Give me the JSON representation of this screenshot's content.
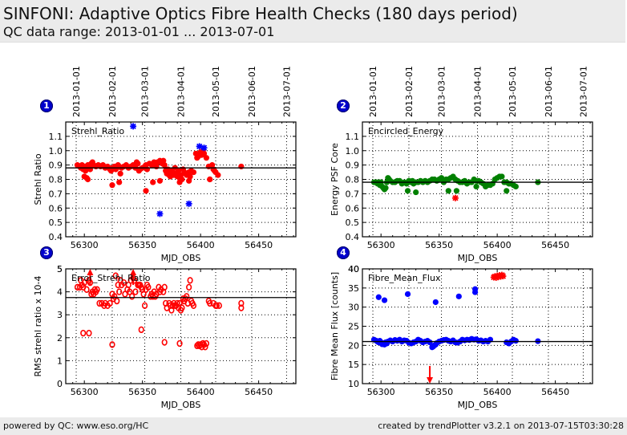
{
  "header": {
    "title": "SINFONI: Adaptive Optics Fibre Health Checks (180 days period)",
    "subtitle": "QC data range: 2013-01-01 ... 2013-07-01"
  },
  "footer": {
    "left": "powered by QC: www.eso.org/HC",
    "right": "created by trendPlotter v3.2.1 on 2013-07-15T03:30:28"
  },
  "badges": [
    "1",
    "2",
    "3",
    "4"
  ],
  "date_ticks": {
    "labels": [
      "2013-01-01",
      "2013-02-01",
      "2013-03-01",
      "2013-04-01",
      "2013-05-01",
      "2013-06-01",
      "2013-07-01"
    ],
    "mjd": [
      56293,
      56324,
      56352,
      56383,
      56413,
      56444,
      56474
    ]
  },
  "chart_data": [
    {
      "type": "scatter",
      "panel": "1",
      "title": "Strehl_Ratio",
      "xlabel": "MJD_OBS",
      "ylabel": "Strehl Ratio",
      "xlim": [
        56284,
        56482
      ],
      "ylim": [
        0.4,
        1.2
      ],
      "xticks": [
        56300,
        56350,
        56400,
        56450
      ],
      "yticks": [
        0.4,
        0.5,
        0.6,
        0.7,
        0.8,
        0.9,
        1.0,
        1.1
      ],
      "ytick_labels": [
        "0.4",
        "0.5",
        "0.6",
        "0.7",
        "0.8",
        "0.9",
        "1.0",
        "1.1"
      ],
      "reference_line": 0.88,
      "grid": "dotted-vertical-at-months, dotted-horizontal",
      "series": [
        {
          "name": "good",
          "color": "#ff0000",
          "marker": "circle",
          "x": [
            56294,
            56296,
            56297,
            56298,
            56299,
            56300,
            56301,
            56302,
            56303,
            56304,
            56305,
            56306,
            56307,
            56308,
            56310,
            56312,
            56314,
            56316,
            56318,
            56320,
            56322,
            56323,
            56324,
            56326,
            56327,
            56328,
            56329,
            56330,
            56331,
            56332,
            56334,
            56336,
            56338,
            56340,
            56342,
            56344,
            56345,
            56346,
            56347,
            56348,
            56350,
            56352,
            56353,
            56354,
            56356,
            56358,
            56359,
            56360,
            56362,
            56363,
            56365,
            56367,
            56368,
            56369,
            56370,
            56371,
            56372,
            56373,
            56374,
            56375,
            56376,
            56377,
            56378,
            56379,
            56380,
            56381,
            56382,
            56383,
            56384,
            56385,
            56386,
            56387,
            56388,
            56390,
            56391,
            56392,
            56394,
            56396,
            56397,
            56398,
            56399,
            56400,
            56401,
            56402,
            56403,
            56405,
            56407,
            56408,
            56410,
            56411,
            56412,
            56413,
            56415,
            56435,
            56300,
            56302,
            56303,
            56324,
            56330,
            56353,
            56359,
            56365,
            56382,
            56390,
            56408
          ],
          "y": [
            0.9,
            0.89,
            0.88,
            0.9,
            0.87,
            0.89,
            0.86,
            0.88,
            0.9,
            0.89,
            0.87,
            0.91,
            0.92,
            0.9,
            0.89,
            0.9,
            0.89,
            0.9,
            0.88,
            0.89,
            0.87,
            0.86,
            0.88,
            0.89,
            0.87,
            0.88,
            0.9,
            0.89,
            0.84,
            0.88,
            0.89,
            0.9,
            0.88,
            0.89,
            0.9,
            0.88,
            0.92,
            0.91,
            0.86,
            0.87,
            0.88,
            0.89,
            0.9,
            0.87,
            0.91,
            0.9,
            0.91,
            0.92,
            0.89,
            0.92,
            0.93,
            0.91,
            0.93,
            0.9,
            0.86,
            0.84,
            0.87,
            0.83,
            0.82,
            0.86,
            0.85,
            0.83,
            0.88,
            0.84,
            0.82,
            0.86,
            0.81,
            0.83,
            0.8,
            0.87,
            0.85,
            0.84,
            0.83,
            0.85,
            0.82,
            0.86,
            0.85,
            0.98,
            0.95,
            0.96,
            0.97,
            0.99,
            0.97,
            1.0,
            0.98,
            0.95,
            0.89,
            0.8,
            0.9,
            0.87,
            0.86,
            0.85,
            0.83,
            0.89,
            0.82,
            0.81,
            0.8,
            0.76,
            0.78,
            0.72,
            0.78,
            0.79,
            0.78,
            0.79,
            0.8
          ]
        },
        {
          "name": "outlier",
          "color": "#0000ff",
          "marker": "star",
          "x": [
            56342,
            56365,
            56390,
            56399,
            56403
          ],
          "y": [
            1.17,
            0.56,
            0.63,
            1.03,
            1.02
          ]
        }
      ]
    },
    {
      "type": "scatter",
      "panel": "2",
      "title": "Encircled_Energy",
      "xlabel": "MJD_OBS",
      "ylabel": "Energy PSF Core",
      "xlim": [
        56284,
        56482
      ],
      "ylim": [
        0.4,
        1.2
      ],
      "xticks": [
        56300,
        56350,
        56400,
        56450
      ],
      "yticks": [
        0.4,
        0.5,
        0.6,
        0.7,
        0.8,
        0.9,
        1.0,
        1.1
      ],
      "ytick_labels": [
        "0.4",
        "0.5",
        "0.6",
        "0.7",
        "0.8",
        "0.9",
        "1.0",
        "1.1"
      ],
      "reference_line": 0.78,
      "series": [
        {
          "name": "good",
          "color": "#008000",
          "marker": "circle",
          "x": [
            56294,
            56296,
            56297,
            56298,
            56299,
            56300,
            56301,
            56302,
            56303,
            56304,
            56305,
            56306,
            56307,
            56308,
            56310,
            56312,
            56314,
            56316,
            56318,
            56320,
            56322,
            56324,
            56326,
            56327,
            56328,
            56330,
            56332,
            56334,
            56336,
            56338,
            56340,
            56342,
            56344,
            56346,
            56348,
            56350,
            56352,
            56354,
            56356,
            56358,
            56360,
            56362,
            56364,
            56366,
            56368,
            56370,
            56372,
            56374,
            56376,
            56378,
            56380,
            56382,
            56384,
            56386,
            56388,
            56390,
            56392,
            56394,
            56396,
            56398,
            56400,
            56402,
            56404,
            56406,
            56408,
            56410,
            56412,
            56414,
            56416,
            56435,
            56323,
            56330,
            56358,
            56365,
            56382,
            56408
          ],
          "y": [
            0.78,
            0.78,
            0.77,
            0.78,
            0.76,
            0.78,
            0.75,
            0.74,
            0.73,
            0.74,
            0.78,
            0.81,
            0.8,
            0.79,
            0.78,
            0.78,
            0.79,
            0.79,
            0.77,
            0.78,
            0.77,
            0.79,
            0.78,
            0.79,
            0.77,
            0.78,
            0.78,
            0.79,
            0.78,
            0.79,
            0.78,
            0.79,
            0.8,
            0.8,
            0.79,
            0.8,
            0.81,
            0.78,
            0.8,
            0.8,
            0.81,
            0.82,
            0.8,
            0.79,
            0.78,
            0.78,
            0.79,
            0.77,
            0.78,
            0.78,
            0.8,
            0.79,
            0.79,
            0.78,
            0.77,
            0.75,
            0.76,
            0.76,
            0.77,
            0.8,
            0.81,
            0.82,
            0.82,
            0.78,
            0.78,
            0.77,
            0.77,
            0.76,
            0.75,
            0.78,
            0.72,
            0.71,
            0.72,
            0.72,
            0.75,
            0.72
          ]
        },
        {
          "name": "outlier",
          "color": "#ff0000",
          "marker": "star",
          "x": [
            56364
          ],
          "y": [
            0.67
          ]
        }
      ]
    },
    {
      "type": "scatter",
      "panel": "3",
      "title": "Error_Strehl_Ratio",
      "xlabel": "MJD_OBS",
      "ylabel": "RMS strehl ratio x 10-4",
      "xlim": [
        56284,
        56482
      ],
      "ylim": [
        0,
        5
      ],
      "xticks": [
        56300,
        56350,
        56400,
        56450
      ],
      "yticks": [
        0,
        1,
        2,
        3,
        4,
        5
      ],
      "ytick_labels": [
        "0",
        "1",
        "2",
        "3",
        "4",
        "5"
      ],
      "reference_line": 3.75,
      "series": [
        {
          "name": "values",
          "color": "#ff0000",
          "marker": "open-circle",
          "x": [
            56294,
            56296,
            56297,
            56298,
            56299,
            56300,
            56302,
            56304,
            56305,
            56306,
            56307,
            56308,
            56309,
            56310,
            56311,
            56313,
            56315,
            56317,
            56318,
            56320,
            56322,
            56324,
            56325,
            56326,
            56327,
            56328,
            56329,
            56330,
            56331,
            56332,
            56334,
            56335,
            56337,
            56338,
            56339,
            56340,
            56341,
            56342,
            56343,
            56344,
            56346,
            56347,
            56348,
            56349,
            56350,
            56351,
            56352,
            56353,
            56354,
            56355,
            56357,
            56358,
            56359,
            56360,
            56361,
            56362,
            56364,
            56365,
            56366,
            56368,
            56369,
            56370,
            56371,
            56373,
            56374,
            56375,
            56376,
            56377,
            56378,
            56379,
            56380,
            56381,
            56382,
            56383,
            56384,
            56385,
            56386,
            56387,
            56388,
            56389,
            56390,
            56391,
            56392,
            56393,
            56394,
            56407,
            56408,
            56411,
            56413,
            56414,
            56416,
            56435,
            56435,
            56299,
            56304,
            56324,
            56349,
            56369,
            56382,
            56397,
            56398,
            56399,
            56400,
            56401,
            56402,
            56403,
            56404,
            56405
          ],
          "y": [
            4.2,
            4.2,
            4.5,
            4.3,
            4.2,
            4.4,
            4.1,
            4.5,
            4.4,
            3.9,
            4.0,
            3.9,
            4.1,
            4.0,
            4.1,
            3.5,
            3.5,
            3.4,
            3.5,
            3.4,
            3.5,
            3.9,
            3.7,
            3.8,
            4.7,
            3.6,
            4.3,
            4.0,
            4.5,
            4.3,
            4.4,
            3.9,
            4.1,
            4.3,
            4.0,
            4.5,
            3.8,
            4.6,
            4.5,
            4.0,
            4.3,
            4.3,
            4.3,
            4.2,
            4.1,
            3.9,
            3.4,
            4.1,
            4.3,
            4.2,
            3.8,
            3.9,
            3.8,
            4.0,
            3.8,
            3.9,
            4.2,
            4.0,
            4.1,
            4.0,
            4.2,
            3.5,
            3.3,
            3.5,
            3.4,
            3.2,
            3.4,
            3.5,
            3.4,
            3.4,
            3.5,
            3.3,
            3.5,
            3.2,
            3.3,
            3.7,
            3.6,
            3.7,
            3.8,
            3.5,
            4.2,
            4.5,
            3.6,
            3.5,
            3.4,
            3.6,
            3.5,
            3.5,
            3.4,
            3.4,
            3.4,
            3.5,
            3.3,
            2.2,
            2.2,
            1.7,
            2.35,
            1.8,
            1.75,
            1.65,
            1.7,
            1.65,
            1.7,
            1.6,
            1.75,
            1.7,
            1.6,
            1.75
          ]
        },
        {
          "name": "out-of-range-upper",
          "color": "#ff0000",
          "marker": "arrow-up",
          "x": [
            56305,
            56342
          ],
          "y": [
            5.0,
            5.0
          ]
        }
      ]
    },
    {
      "type": "scatter",
      "panel": "4",
      "title": "Fibre_Mean_Flux",
      "xlabel": "MJD_OBS",
      "ylabel": "Fibre Mean Flux [counts]",
      "xlim": [
        56284,
        56482
      ],
      "ylim": [
        10,
        40
      ],
      "xticks": [
        56300,
        56350,
        56400,
        56450
      ],
      "yticks": [
        10,
        15,
        20,
        25,
        30,
        35,
        40
      ],
      "ytick_labels": [
        "10",
        "15",
        "20",
        "25",
        "30",
        "35",
        "40"
      ],
      "reference_line": 21.0,
      "series": [
        {
          "name": "good",
          "color": "#0000ff",
          "marker": "circle",
          "x": [
            56294,
            56296,
            56297,
            56298,
            56299,
            56300,
            56301,
            56302,
            56303,
            56304,
            56305,
            56306,
            56308,
            56310,
            56312,
            56314,
            56316,
            56318,
            56320,
            56322,
            56324,
            56326,
            56328,
            56330,
            56332,
            56334,
            56336,
            56338,
            56340,
            56342,
            56344,
            56345,
            56346,
            56347,
            56348,
            56350,
            56352,
            56354,
            56356,
            56358,
            56360,
            56362,
            56364,
            56366,
            56368,
            56370,
            56372,
            56374,
            56376,
            56378,
            56380,
            56382,
            56384,
            56386,
            56388,
            56390,
            56392,
            56394,
            56408,
            56410,
            56412,
            56414,
            56416,
            56435,
            56298,
            56303,
            56323,
            56347,
            56367,
            56381,
            56381
          ],
          "y": [
            21.5,
            21.2,
            21.0,
            20.8,
            21.2,
            20.8,
            20.3,
            20.6,
            20.2,
            20.8,
            20.5,
            21.0,
            21.3,
            21.0,
            21.4,
            21.2,
            21.5,
            21.0,
            21.3,
            21.2,
            20.7,
            20.5,
            20.8,
            21.0,
            21.5,
            21.2,
            20.8,
            21.0,
            21.2,
            20.8,
            19.5,
            19.7,
            20.0,
            20.2,
            20.6,
            21.0,
            21.2,
            21.4,
            21.5,
            21.2,
            21.0,
            21.3,
            20.8,
            20.7,
            21.0,
            21.5,
            21.3,
            21.5,
            21.4,
            21.7,
            21.5,
            21.6,
            21.2,
            21.3,
            21.0,
            21.2,
            21.0,
            21.5,
            20.8,
            20.5,
            21.0,
            21.5,
            21.2,
            21.1,
            32.6,
            31.8,
            33.4,
            31.3,
            32.8,
            34.7,
            33.9
          ]
        },
        {
          "name": "outlier",
          "color": "#ff0000",
          "marker": "star",
          "x": [
            56397,
            56398,
            56399,
            56400,
            56401,
            56402,
            56403,
            56404,
            56405
          ],
          "y": [
            37.8,
            38.0,
            37.7,
            38.2,
            37.9,
            38.3,
            38.0,
            38.4,
            38.1
          ]
        },
        {
          "name": "out-of-range-lower",
          "color": "#ff0000",
          "marker": "arrow-down",
          "x": [
            56342
          ],
          "y": [
            10.0
          ]
        }
      ]
    }
  ]
}
